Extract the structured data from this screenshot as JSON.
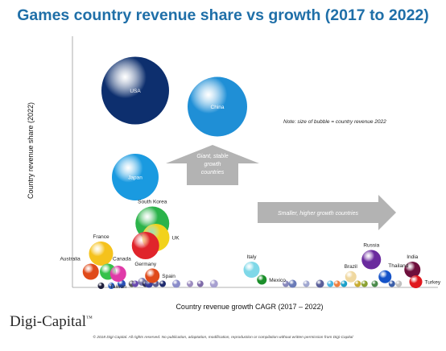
{
  "chart_data": {
    "type": "scatter",
    "title": "Games country revenue share vs growth (2017 to 2022)",
    "xlabel": "Country revenue growth CAGR (2017 – 2022)",
    "ylabel": "Country revenue share (2022)",
    "note": "Note: size of bubble = country revenue 2022",
    "annotations": [
      {
        "text": "Giant, stable growth countries",
        "direction": "up"
      },
      {
        "text": "Smaller, higher growth countries",
        "direction": "right"
      }
    ],
    "xlim": [
      0,
      100
    ],
    "ylim": [
      0,
      100
    ],
    "grid": false,
    "legend": "none",
    "series": [
      {
        "label": "USA",
        "x": 16,
        "y": 93,
        "size": 42,
        "color": "#0d2f6e",
        "label_inside": true
      },
      {
        "label": "China",
        "x": 40,
        "y": 85,
        "size": 37,
        "color": "#1f8fd6",
        "label_inside": true
      },
      {
        "label": "Japan",
        "x": 16,
        "y": 50,
        "size": 29,
        "color": "#1a9ae0",
        "label_inside": true
      },
      {
        "label": "South Korea",
        "x": 21,
        "y": 27,
        "size": 21,
        "color": "#2bb34a",
        "label_inside": false
      },
      {
        "label": "UK",
        "x": 22,
        "y": 20,
        "size": 17,
        "color": "#f2d21b",
        "label_inside": false
      },
      {
        "label": "Germany",
        "x": 19,
        "y": 16,
        "size": 17,
        "color": "#e0242b",
        "label_inside": false
      },
      {
        "label": "France",
        "x": 6,
        "y": 12,
        "size": 15,
        "color": "#f5c21c",
        "label_inside": false
      },
      {
        "label": "Australia",
        "x": 3,
        "y": 3,
        "size": 10,
        "color": "#e04a1a",
        "label_inside": false
      },
      {
        "label": "Canada",
        "x": 8,
        "y": 3,
        "size": 10,
        "color": "#35c14a",
        "label_inside": false
      },
      {
        "label": "Taiwan",
        "x": 11,
        "y": 2,
        "size": 10,
        "color": "#e03aa8",
        "label_inside": false
      },
      {
        "label": "Spain",
        "x": 21,
        "y": 1,
        "size": 9,
        "color": "#e04a1a",
        "label_inside": false
      },
      {
        "label": "Italy",
        "x": 50,
        "y": 4,
        "size": 10,
        "color": "#7fd8e8",
        "label_inside": false
      },
      {
        "label": "Mexico",
        "x": 53,
        "y": -1,
        "size": 6,
        "color": "#1b8f2a",
        "label_inside": false
      },
      {
        "label": "Russia",
        "x": 85,
        "y": 9,
        "size": 12,
        "color": "#6a2a9e",
        "label_inside": false
      },
      {
        "label": "Brazil",
        "x": 79,
        "y": 0.5,
        "size": 7,
        "color": "#f0d8a0",
        "label_inside": false
      },
      {
        "label": "Thailand",
        "x": 89,
        "y": 0.5,
        "size": 8,
        "color": "#1553c8",
        "label_inside": false
      },
      {
        "label": "India",
        "x": 97,
        "y": 4,
        "size": 10,
        "color": "#6e0f3c",
        "label_inside": false
      },
      {
        "label": "Turkey",
        "x": 98,
        "y": -2,
        "size": 8,
        "color": "#e0181e",
        "label_inside": false
      }
    ],
    "small_points": [
      {
        "x": 6,
        "y": -4,
        "size": 4,
        "color": "#1d1d3a"
      },
      {
        "x": 9,
        "y": -4,
        "size": 4,
        "color": "#2e5fbf"
      },
      {
        "x": 12,
        "y": -3,
        "size": 5,
        "color": "#2950b8"
      },
      {
        "x": 15,
        "y": -3,
        "size": 4,
        "color": "#5a5a5a"
      },
      {
        "x": 16,
        "y": -3,
        "size": 4,
        "color": "#6a4ab0"
      },
      {
        "x": 18,
        "y": -2,
        "size": 5,
        "color": "#7a78a8"
      },
      {
        "x": 19,
        "y": -3,
        "size": 4,
        "color": "#2c2c50"
      },
      {
        "x": 20,
        "y": -3,
        "size": 5,
        "color": "#3a3f9a"
      },
      {
        "x": 22,
        "y": -3,
        "size": 4,
        "color": "#5e5e90"
      },
      {
        "x": 24,
        "y": -3,
        "size": 4,
        "color": "#1e2a6e"
      },
      {
        "x": 28,
        "y": -3,
        "size": 5,
        "color": "#8a8cc9"
      },
      {
        "x": 32,
        "y": -3,
        "size": 4,
        "color": "#9d8dc0"
      },
      {
        "x": 35,
        "y": -3,
        "size": 4,
        "color": "#7e6aa8"
      },
      {
        "x": 39,
        "y": -3,
        "size": 5,
        "color": "#a7a0d0"
      },
      {
        "x": 60,
        "y": -3,
        "size": 4,
        "color": "#8888bb"
      },
      {
        "x": 62,
        "y": -3,
        "size": 5,
        "color": "#6a7bb8"
      },
      {
        "x": 66,
        "y": -3,
        "size": 4,
        "color": "#a0a7d0"
      },
      {
        "x": 70,
        "y": -3,
        "size": 5,
        "color": "#5a5f9a"
      },
      {
        "x": 73,
        "y": -3,
        "size": 4,
        "color": "#48b4e0"
      },
      {
        "x": 75,
        "y": -3,
        "size": 4,
        "color": "#f08040"
      },
      {
        "x": 77,
        "y": -3,
        "size": 4,
        "color": "#1aa0c8"
      },
      {
        "x": 81,
        "y": -3,
        "size": 4,
        "color": "#c8ac30"
      },
      {
        "x": 83,
        "y": -3,
        "size": 4,
        "color": "#8aa030"
      },
      {
        "x": 86,
        "y": -3,
        "size": 4,
        "color": "#4a8a4a"
      },
      {
        "x": 91,
        "y": -3,
        "size": 4,
        "color": "#3a5ea8"
      },
      {
        "x": 93,
        "y": -3,
        "size": 4,
        "color": "#c0c0c0"
      }
    ]
  },
  "branding": {
    "company": "Digi-Capital",
    "trademark": "™",
    "copyright": "© 2018 Digi-Capital. All rights reserved. No publication, adaptation, modification, reproduction or compilation without written permission from Digi-Capital"
  }
}
